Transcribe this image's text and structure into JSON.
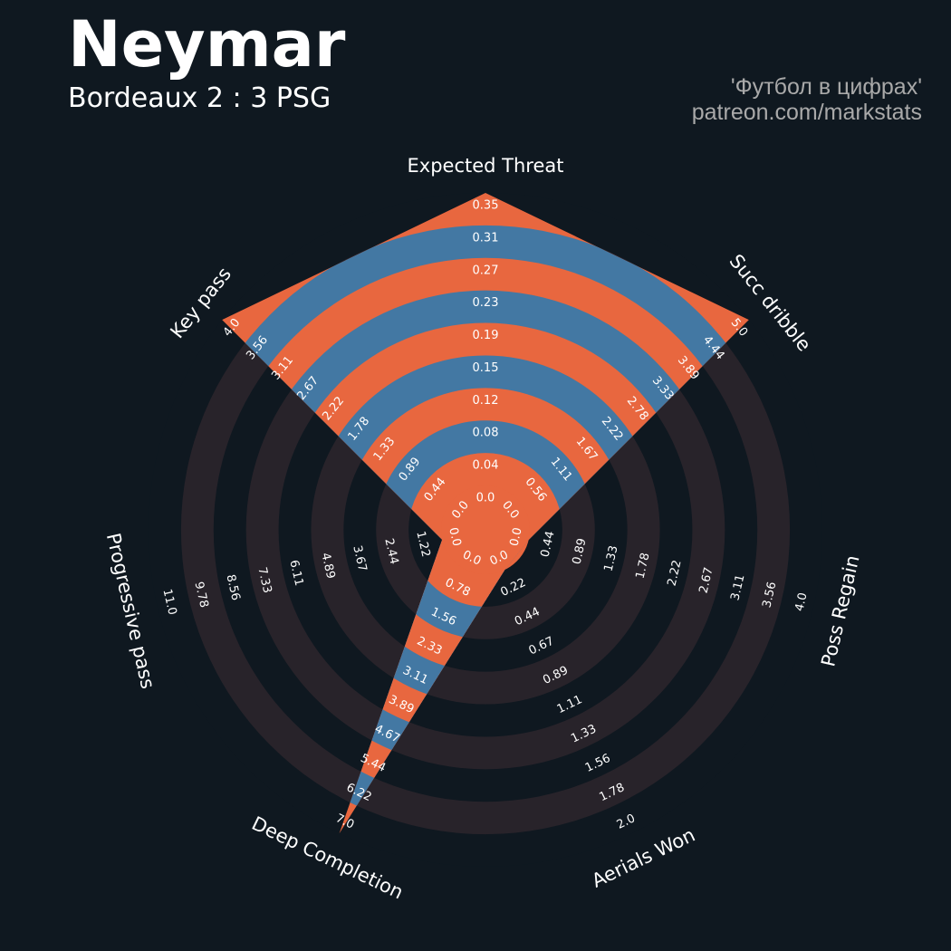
{
  "header": {
    "title": "Neymar",
    "subtitle": "Bordeaux 2 : 3 PSG",
    "credit_line1": "'Футбол в цифрах'",
    "credit_line2": "patreon.com/markstats"
  },
  "colors": {
    "background": "#0f1820",
    "band_orange": "#e8673f",
    "band_dark": "#28232a",
    "player_fill": "#4378a3",
    "label_text": "#ffffff",
    "credit_text": "#a9a9a9"
  },
  "chart_data": {
    "type": "radar",
    "series": [
      {
        "values": [
          0.35,
          5.0,
          0.0,
          0.0,
          7.0,
          0.0,
          4.0
        ]
      }
    ],
    "params": [
      {
        "name": "Expected Threat",
        "ticks": [
          "0.0",
          "0.04",
          "0.08",
          "0.12",
          "0.15",
          "0.19",
          "0.23",
          "0.27",
          "0.31",
          "0.35"
        ]
      },
      {
        "name": "Succ dribble",
        "ticks": [
          "0.0",
          "0.56",
          "1.11",
          "1.67",
          "2.22",
          "2.78",
          "3.33",
          "3.89",
          "4.44",
          "5.0"
        ]
      },
      {
        "name": "Poss Regain",
        "ticks": [
          "0.0",
          "0.44",
          "0.89",
          "1.33",
          "1.78",
          "2.22",
          "2.67",
          "3.11",
          "3.56",
          "4.0"
        ]
      },
      {
        "name": "Aerials Won",
        "ticks": [
          "0.0",
          "0.22",
          "0.44",
          "0.67",
          "0.89",
          "1.11",
          "1.33",
          "1.56",
          "1.78",
          "2.0"
        ]
      },
      {
        "name": "Deep Completion",
        "ticks": [
          "0.0",
          "0.78",
          "1.56",
          "2.33",
          "3.11",
          "3.89",
          "4.67",
          "5.44",
          "6.22",
          "7.0"
        ]
      },
      {
        "name": "Progressive pass",
        "ticks": [
          "0.0",
          "1.22",
          "2.44",
          "3.67",
          "4.89",
          "6.11",
          "7.33",
          "8.56",
          "9.78",
          "11.0"
        ]
      },
      {
        "name": "Key pass",
        "ticks": [
          "0.0",
          "0.44",
          "0.89",
          "1.33",
          "1.78",
          "2.22",
          "2.67",
          "3.11",
          "3.56",
          "4.0"
        ]
      }
    ]
  }
}
